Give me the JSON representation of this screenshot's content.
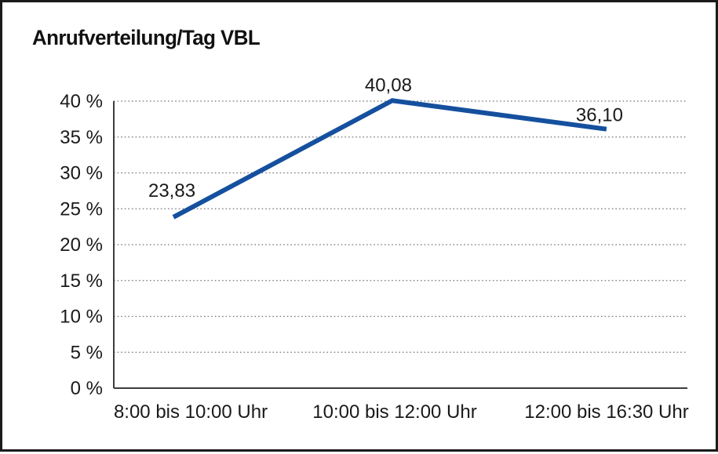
{
  "window": {
    "title": "Anrufverteilung/Tag VBL"
  },
  "chart_data": {
    "type": "line",
    "title": "Anrufverteilung/Tag VBL",
    "categories": [
      "8:00 bis 10:00 Uhr",
      "10:00 bis 12:00 Uhr",
      "12:00 bis 16:30 Uhr"
    ],
    "values": [
      23.83,
      40.08,
      36.1
    ],
    "value_labels": [
      "23,83",
      "40,08",
      "36,10"
    ],
    "series_name": "Anrufverteilung",
    "xlabel": "",
    "ylabel": "",
    "ylim": [
      0,
      40
    ],
    "y_ticks": [
      0,
      5,
      10,
      15,
      20,
      25,
      30,
      35,
      40
    ],
    "y_tick_labels": [
      "0 %",
      "5 %",
      "10 %",
      "15 %",
      "20 %",
      "25 %",
      "30 %",
      "35 %",
      "40 %"
    ],
    "grid": "horizontal-dotted",
    "legend": "none"
  },
  "colors": {
    "background": "#ffffff",
    "frame": "#1a1a1a",
    "text": "#1a1a1a",
    "axis": "#3c3c3c",
    "grid": "#757575",
    "line": "#15509e"
  }
}
